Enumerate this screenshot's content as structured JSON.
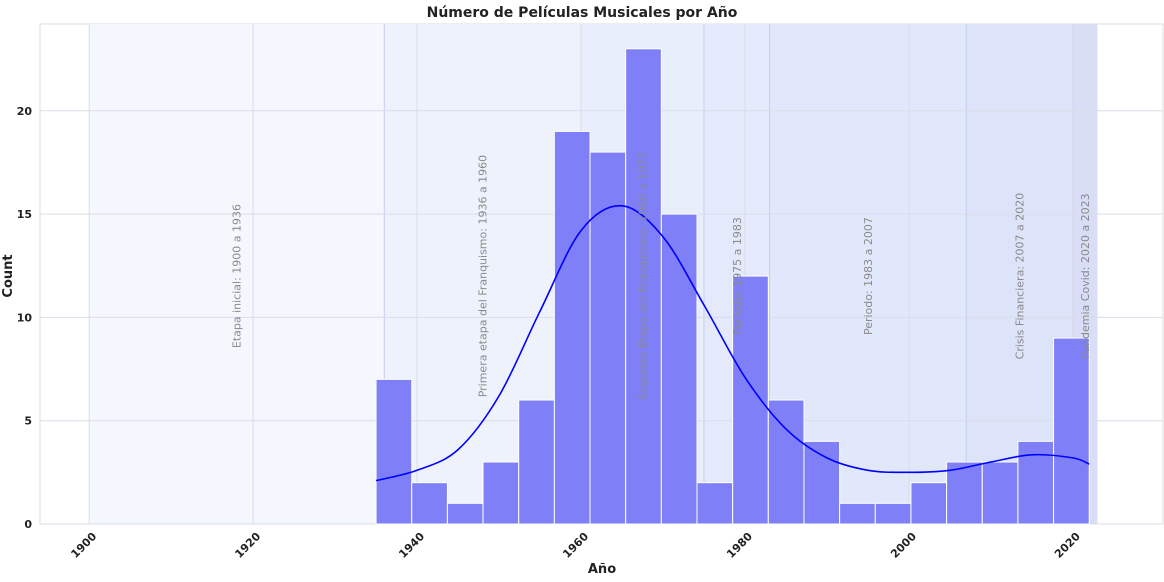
{
  "chart_data": {
    "type": "bar",
    "title": "Número de Películas Musicales por Año",
    "xlabel": "Año",
    "ylabel": "Count",
    "xlim": [
      1894,
      2031
    ],
    "ylim": [
      0,
      24.2
    ],
    "x_ticks": [
      1900,
      1920,
      1940,
      1960,
      1980,
      2000,
      2020
    ],
    "y_ticks": [
      0,
      5,
      10,
      15,
      20
    ],
    "grid": true,
    "bin_width": 4.35,
    "bins": [
      {
        "start": 1935.0,
        "count": 7
      },
      {
        "start": 1939.35,
        "count": 2
      },
      {
        "start": 1943.7,
        "count": 1
      },
      {
        "start": 1948.05,
        "count": 3
      },
      {
        "start": 1952.4,
        "count": 6
      },
      {
        "start": 1956.75,
        "count": 19
      },
      {
        "start": 1961.1,
        "count": 18
      },
      {
        "start": 1965.45,
        "count": 23
      },
      {
        "start": 1969.8,
        "count": 15
      },
      {
        "start": 1974.15,
        "count": 2
      },
      {
        "start": 1978.5,
        "count": 12
      },
      {
        "start": 1982.85,
        "count": 6
      },
      {
        "start": 1987.2,
        "count": 4
      },
      {
        "start": 1991.55,
        "count": 1
      },
      {
        "start": 1995.9,
        "count": 1
      },
      {
        "start": 2000.25,
        "count": 2
      },
      {
        "start": 2004.6,
        "count": 3
      },
      {
        "start": 2008.95,
        "count": 3
      },
      {
        "start": 2013.3,
        "count": 4
      },
      {
        "start": 2017.65,
        "count": 9
      }
    ],
    "kde": {
      "x": [
        1935,
        1940,
        1945,
        1950,
        1955,
        1960,
        1965,
        1970,
        1975,
        1980,
        1985,
        1990,
        1995,
        2000,
        2005,
        2010,
        2015,
        2020,
        2022
      ],
      "y": [
        2.1,
        2.6,
        3.6,
        6.2,
        10.3,
        14.2,
        15.4,
        13.9,
        10.6,
        7.1,
        4.6,
        3.2,
        2.6,
        2.5,
        2.6,
        3.0,
        3.35,
        3.2,
        2.9
      ]
    },
    "bar_color": "#7f7ff7",
    "kde_color": "#0000ff",
    "periods": [
      {
        "start": 1900,
        "end": 1936,
        "label": "Etapa inicial: 1900 a 1936",
        "label_x": 1918,
        "label_y": 12,
        "color": "#f4f7fd"
      },
      {
        "start": 1936,
        "end": 1960,
        "label": "Primera etapa del Franquismo: 1936 a 1960",
        "label_x": 1948,
        "label_y": 12,
        "color": "#eef2fc"
      },
      {
        "start": 1960,
        "end": 1975,
        "label": "Segunda Etapa del Franquismo: 1960 a 1975",
        "label_x": 1967.5,
        "label_y": 12,
        "color": "#e8eefc"
      },
      {
        "start": 1975,
        "end": 1983,
        "label": "Periodo: 1975 a 1983",
        "label_x": 1979,
        "label_y": 12,
        "color": "#e4eafb"
      },
      {
        "start": 1983,
        "end": 2007,
        "label": "Periodo: 1983 a 2007",
        "label_x": 1995,
        "label_y": 12,
        "color": "#e2e8fb"
      },
      {
        "start": 2007,
        "end": 2020,
        "label": "Crisis Financiera: 2007 a 2020",
        "label_x": 2013.5,
        "label_y": 12,
        "color": "#dde4f9"
      },
      {
        "start": 2020,
        "end": 2023,
        "label": "Pandemia Covid: 2020 a 2023",
        "label_x": 2021.5,
        "label_y": 12,
        "color": "#d9ddf6"
      }
    ]
  }
}
